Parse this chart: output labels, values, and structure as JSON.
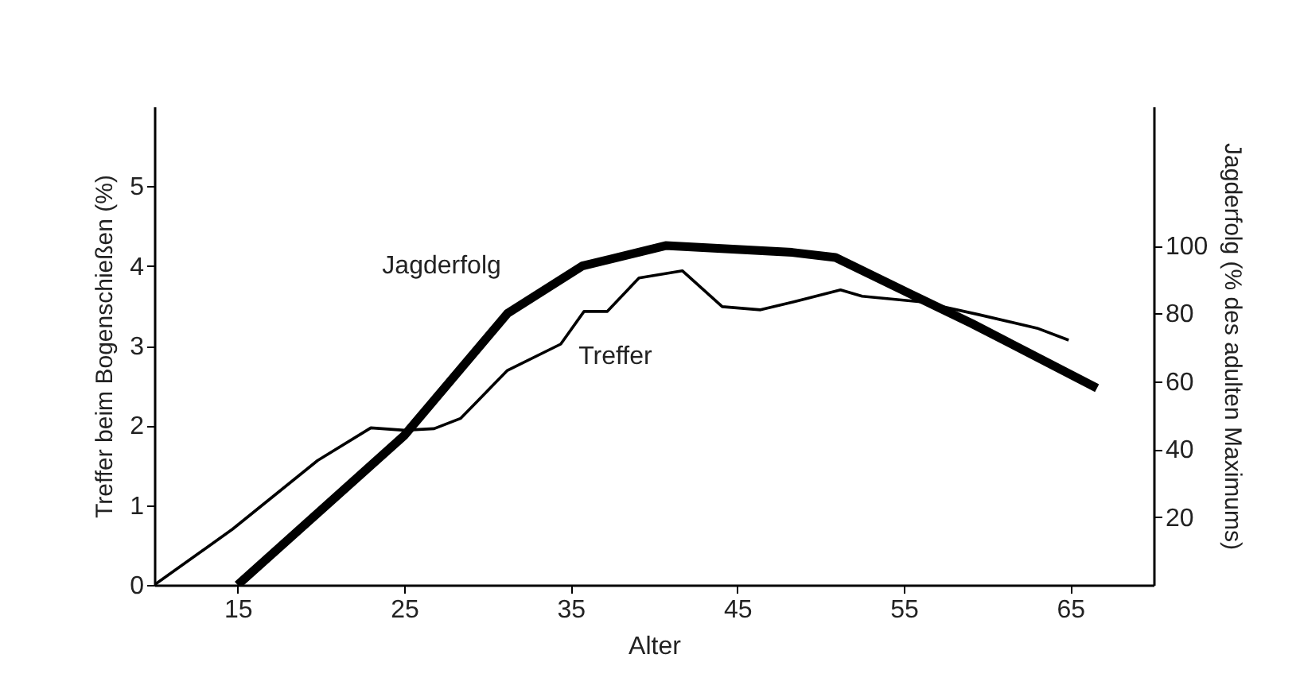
{
  "chart_data": {
    "type": "line",
    "xlabel": "Alter",
    "ylabel": "Treffer beim Bogenschießen (%)",
    "y2label": "Jagderfolg (% des adulten Maximums)",
    "xlim": [
      10,
      70
    ],
    "xticks": [
      15,
      25,
      35,
      45,
      55,
      65
    ],
    "ylim": [
      0,
      6
    ],
    "yticks": [
      0,
      1,
      2,
      3,
      4,
      5
    ],
    "y2lim": [
      0,
      141
    ],
    "y2ticks": [
      20,
      40,
      60,
      80,
      100
    ],
    "grid": false,
    "legend": false,
    "marker": "none",
    "line_style": "solid",
    "series": [
      {
        "name": "Jagderfolg",
        "color": "#000000",
        "axis": "y2",
        "x": [
          15,
          25,
          31.2,
          35.7,
          40.7,
          48.3,
          50.9,
          55.3,
          59.1,
          66.6
        ],
        "values": [
          0,
          44,
          80,
          94,
          100,
          98,
          96.5,
          86,
          77,
          58
        ]
      },
      {
        "name": "Treffer",
        "color": "#000000",
        "x": [
          10,
          14.7,
          19.8,
          23,
          25,
          26.8,
          28.4,
          31.2,
          34.4,
          35.8,
          37.2,
          39.1,
          41.7,
          44.1,
          46.4,
          48.4,
          51.2,
          52.5,
          56,
          59.5,
          63,
          64.9
        ],
        "values": [
          0,
          0.7,
          1.56,
          1.97,
          1.94,
          1.96,
          2.09,
          2.69,
          3.02,
          3.43,
          3.43,
          3.85,
          3.94,
          3.49,
          3.45,
          3.55,
          3.7,
          3.62,
          3.55,
          3.39,
          3.22,
          3.07
        ]
      }
    ]
  }
}
